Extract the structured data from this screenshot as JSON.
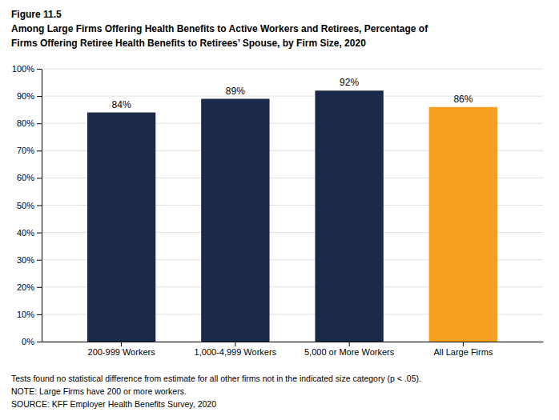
{
  "chart_data": {
    "type": "bar",
    "title": [
      "Figure 11.5",
      "Among Large Firms Offering Health Benefits to Active Workers and Retirees, Percentage of",
      "Firms Offering Retiree Health Benefits to Retirees’ Spouse, by Firm Size, 2020"
    ],
    "categories": [
      "200-999 Workers",
      "1,000-4,999 Workers",
      "5,000 or More Workers",
      "All Large Firms"
    ],
    "values": [
      84,
      89,
      92,
      86
    ],
    "value_labels": [
      "84%",
      "89%",
      "92%",
      "86%"
    ],
    "data_labels": true,
    "colors": [
      "#1B2A4A",
      "#1B2A4A",
      "#1B2A4A",
      "#F5A020"
    ],
    "ylim": [
      0,
      100
    ],
    "yticks": [
      {
        "value": 0,
        "label": "0%"
      },
      {
        "value": 10,
        "label": "10%"
      },
      {
        "value": 20,
        "label": "20%"
      },
      {
        "value": 30,
        "label": "30%"
      },
      {
        "value": 40,
        "label": "40%"
      },
      {
        "value": 50,
        "label": "50%"
      },
      {
        "value": 60,
        "label": "60%"
      },
      {
        "value": 70,
        "label": "70%"
      },
      {
        "value": 80,
        "label": "80%"
      },
      {
        "value": 90,
        "label": "90%"
      },
      {
        "value": 100,
        "label": "100%"
      }
    ],
    "grid": true,
    "annotations": [
      "Tests found no statistical difference from estimate for all other firms not in the indicated size category (p < .05).",
      "NOTE: Large Firms have 200 or more workers.",
      "SOURCE: KFF Employer Health Benefits Survey, 2020"
    ]
  }
}
